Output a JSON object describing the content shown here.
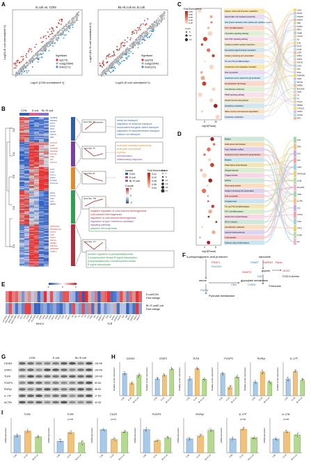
{
  "panels": {
    "A": {
      "label": "A",
      "left": {
        "title": "E.coli vs. CON",
        "xlabel": "Log10 (CON normalized+1)",
        "ylabel": "Log10 (E.coli normalized+1)",
        "legend_title": "Significant",
        "legend": [
          "up(179)",
          "nosig(23084)",
          "down(171)"
        ],
        "ticks": [
          "0",
          "1",
          "2",
          "3",
          "4",
          "5"
        ]
      },
      "right": {
        "title": "BL+E.coli vs. E.coli",
        "xlabel": "Log10 (E.coli normalized+1)",
        "ylabel": "Log10 (BL+E.coli normalized+1)",
        "legend_title": "Significant",
        "legend": [
          "up(233)",
          "nosig(22940)",
          "down(211)"
        ],
        "ticks": [
          "0",
          "1",
          "2",
          "3",
          "4",
          "5"
        ]
      },
      "colors": {
        "up": "#e0302a",
        "nosig": "#aaaaaa",
        "down": "#3a8fd6"
      }
    },
    "B": {
      "label": "B",
      "groups": [
        "CON",
        "E.coli",
        "BL+E.coli"
      ],
      "clusters": [
        "C2",
        "C4",
        "C5",
        "C3",
        "C1"
      ],
      "gene_sizes": [
        "Gene Size: 73",
        "Gene Size: 75",
        "Gene Size: 81",
        "Gene Size: 709",
        "Gene Size: 177"
      ],
      "legend_sample_title": "sample",
      "legend_zscore_title": "Z-score",
      "zscore_ticks": [
        "3",
        "2",
        "1",
        "0",
        "-1",
        "-2"
      ],
      "go_terms": [
        [
          "metal ion transport",
          "regulation of metal ion transport",
          "monovalent inorganic cation transport",
          "regulation of transmembrane transport",
          "calcium ion transport"
        ],
        [
          "leukocyte mediated cytotoxicity",
          "leukocyte chemotaxis",
          "myeloid",
          "cell activation",
          "inflammatory response"
        ],
        [
          "negative regulation of cold-induced thermogenesis",
          "cold-induced thermogenesis",
          "regulation of cold-induced thermogenesis",
          "regulation of type I interferon-mediated",
          "signaling pathway",
          "adaptive thermogenesis"
        ],
        [
          "positive regulation of phosphatidylinositol",
          "3-kinase/protein kinase B signal transduction",
          "phosphatidylinositol 3-kinase/protein kinase",
          "B signal transduction"
        ]
      ],
      "genes_c2": [
        "SAMD9",
        "RSAD2",
        "IFIT1",
        "IFIT3",
        "MX1",
        "OAS2",
        "ISG15",
        "IFI6"
      ],
      "genes_c4": [
        "CXCL8",
        "IL1B",
        "S100A8",
        "S100A9",
        "CCL20",
        "TNF",
        "IL6",
        "CXCL2"
      ],
      "genes_c5": [
        "IL10",
        "IL1A",
        "CCL4",
        "CSF2",
        "PTGS2",
        "CXCL10"
      ],
      "genes_c3": [
        "IFNG",
        "IL17A",
        "IL22",
        "IL21",
        "MMP1"
      ],
      "genes_c1": [
        "PPP1R3C",
        "PPARGC1A",
        "UCP2",
        "IL33",
        "PDK4",
        "MSTN",
        "INHBA",
        "PROK2",
        "PRDM16",
        "IL1RL1"
      ]
    },
    "C": {
      "label": "C",
      "legend_title": "Fold Enrichment",
      "legend_ticks": [
        "0.35",
        "0.30",
        "0.25",
        "0.20",
        "0.15"
      ],
      "count_title": "Count",
      "count_values": [
        "5",
        "10",
        "15"
      ],
      "xlabel": "-log10(Pvalue)",
      "xticks": [
        "5",
        "10"
      ],
      "pathways": [
        "Glycine, serine and threonine metabolism",
        "Natural killer cell mediated cytotoxicity",
        "Viral protein interaction with cytokine and cytokine receptor",
        "Th17 cell differentiation",
        "Chemokine signaling pathway",
        "JAK-STAT signaling pathway",
        "Cytokine-cytokine receptor interaction",
        "Neuroactive ligand-receptor interaction",
        "Antigen processing and presentation",
        "Th1 and Th2 cell differentiation",
        "Complement and coagulation cascades",
        "Viral myocarditis",
        "Intestinal immune network for IgA production",
        "Hematopoietic cell lineage",
        "Cell adhesion molecules",
        "PPAR signaling pathway",
        "Steroid hormone biosynthesis",
        "Glutathione metabolism",
        "Valine, leucine and isoleucine degradation",
        "Tryptophan metabolism"
      ],
      "genes": [
        "GLDC",
        "PSAT1",
        "PHGDH",
        "SHMT2",
        "CBS",
        "KLRD1",
        "PRF1",
        "GZMB",
        "CXCL8",
        "IL6",
        "IL1B",
        "IL17A",
        "IL21R",
        "CCR7",
        "STAT1",
        "STAT3",
        "SOCS3",
        "CSF3",
        "IL22",
        "IFNG",
        "TNFRSF9",
        "CD40",
        "NPY1R",
        "ADRB2",
        "BLA-DQA",
        "CD74",
        "C3",
        "F3",
        "CTLA4",
        "PPARG",
        "CYP11A1",
        "GSTA1",
        "ACAA2",
        "IDO1"
      ]
    },
    "D": {
      "label": "D",
      "legend_title": "Fold Enrichment",
      "legend_ticks": [
        "0.12",
        "0.10",
        "0.08",
        "0.06",
        "0.04"
      ],
      "count_title": "Count",
      "count_values": [
        "7",
        "9",
        "11",
        "13",
        "15",
        "17"
      ],
      "xlabel": "-log10(Pvalue)",
      "xticks": [
        "4",
        "8"
      ],
      "pathways": [
        "Malaria",
        "Graft-versus-host disease",
        "Type I diabetes mellitus",
        "Intestinal immune network for IgA production",
        "Measles",
        "Inflammatory bowel disease",
        "Allograft rejection",
        "Chagas disease",
        "Asthma",
        "Rheumatoid arthritis",
        "Antigen processing and presentation",
        "Viral myocarditis",
        "Toxoplasmosis",
        "Th1 and Th2 cell differentiation",
        "Th17 cell differentiation",
        "Autoimmune thyroid disease",
        "HTLV-I infection",
        "Cell adhesion molecules",
        "Lipid and atherosclerosis",
        "Leishmaniasis",
        "Systemic lupus erythematosus"
      ],
      "genes": [
        "IL1B",
        "IFNG",
        "IL1A",
        "IL10",
        "CCR7",
        "TNFSF13B",
        "IL12B",
        "BLA-DRA",
        "CD40",
        "IL17RA",
        "IL22",
        "CXCL8",
        "TLR4",
        "STAT1",
        "ICAM1",
        "IL6"
      ]
    },
    "E": {
      "label": "E",
      "row_labels": [
        "E.coli/CON",
        "BL+E.coli/E.coli"
      ],
      "fold_change_label": "Fold change",
      "scale_ticks": [
        "-2",
        "0",
        "2"
      ],
      "group_labels": [
        "MHC-II",
        "TCR"
      ],
      "col_genes": [
        "BOLA-DQA1",
        "BOLA-DQB",
        "BOLA-DRA",
        "BOLA-DRB3",
        "CD4",
        "CD74",
        "CIITA",
        "CTSS",
        "HLA-DMA",
        "HLA-DMB",
        "IFI30",
        "LGMN",
        "CD3D",
        "CD3E",
        "CD3G",
        "CD247",
        "CD28",
        "CTLA4",
        "ICOS",
        "LCK",
        "ZAP70",
        "ITK",
        "LAT",
        "IL2",
        "IL4",
        "IL5",
        "IL10",
        "IFNG",
        "TNF",
        "CSF2",
        "NFATC1",
        "NFATC2",
        "FOS",
        "JUN",
        "NFKB1",
        "CD40LG",
        "PDCD1",
        "TRA",
        "TRB",
        "BCL10",
        "CARD11",
        "MALT1",
        "PRKCQ"
      ]
    },
    "F": {
      "label": "F",
      "nodes": [
        "3-phosphoglyceric acid produced",
        "sarcosine",
        "PSAT1",
        "SARDH",
        "Pipox",
        "PHGDH",
        "glycine",
        "GLDC",
        "CO2,5-Amino",
        "serine",
        "glyoxylate metabolism",
        "Threonine",
        "Pyruvate metabolism",
        "SHMT2",
        "GNMT",
        "CBS",
        "CHDH",
        "DAO",
        "PDHA"
      ],
      "red_nodes": [
        "PSAT1",
        "SARDH",
        "GLDC",
        "SHMT2"
      ],
      "blue_nodes": [
        "PHGDH",
        "GNMT",
        "CBS",
        "CHDH",
        "DAO",
        "PDHA"
      ]
    },
    "G": {
      "label": "G",
      "groups": [
        "CON",
        "E.coli",
        "BL+E.coli"
      ],
      "bands": [
        "CD163",
        "STAT2",
        "TLR4",
        "FOXP3",
        "RORγt",
        "IL-17F",
        "ACTIN"
      ],
      "sizes": [
        "130 KD",
        "100 KD",
        "100 KD",
        "50 KD",
        "58 KD",
        "17 KD",
        "42 KD"
      ]
    },
    "H": {
      "label": "H",
      "ylabel": "Relative protein expression",
      "categories": [
        "CON",
        "E.coli",
        "BL+E.coli"
      ],
      "charts": [
        {
          "title": "CD163",
          "values": [
            1.0,
            0.55,
            0.92
          ],
          "ymax": 1.5
        },
        {
          "title": "STAT2",
          "values": [
            1.0,
            1.22,
            1.58
          ],
          "ymax": 2.0
        },
        {
          "title": "TLR4",
          "values": [
            1.0,
            1.62,
            0.98
          ],
          "ymax": 2.0
        },
        {
          "title": "FOXP3",
          "values": [
            1.0,
            0.38,
            0.84
          ],
          "ymax": 1.5
        },
        {
          "title": "RORγt",
          "values": [
            1.0,
            1.78,
            1.02
          ],
          "ymax": 2.5
        },
        {
          "title": "IL-17F",
          "values": [
            1.0,
            1.45,
            0.92
          ],
          "ymax": 2.0
        }
      ]
    },
    "I": {
      "label": "I",
      "ylabel": "mRNA expression",
      "categories": [
        "CON",
        "E.coli",
        "BL+E.coli"
      ],
      "charts": [
        {
          "title": "TLR4",
          "values": [
            1.0,
            1.25,
            0.92
          ],
          "ymax": 2.0
        },
        {
          "title": "TLR9",
          "values": [
            1.0,
            1.75,
            0.86
          ],
          "ymax": 3.0,
          "p": "p=0.06"
        },
        {
          "title": "CD25",
          "values": [
            1.0,
            0.58,
            0.9
          ],
          "ymax": 1.5,
          "p": "p=0.07"
        },
        {
          "title": "FOXP3",
          "values": [
            1.0,
            0.52,
            0.64
          ],
          "ymax": 1.5
        },
        {
          "title": "RORγt",
          "values": [
            1.0,
            1.22,
            1.62
          ],
          "ymax": 2.5
        },
        {
          "title": "IL-17F",
          "values": [
            1.0,
            1.7,
            1.1
          ],
          "ymax": 2.5,
          "p": "p=0.09"
        },
        {
          "title": "IL-17A",
          "values": [
            1.0,
            1.5,
            1.28
          ],
          "ymax": 2.5,
          "p": "p=0.08"
        }
      ]
    }
  },
  "colors": {
    "con": "#a8c9e8",
    "ecoli": "#f2c27a",
    "bl": "#b5d98e",
    "red": "#d7191c",
    "blue": "#2c7bb6"
  }
}
